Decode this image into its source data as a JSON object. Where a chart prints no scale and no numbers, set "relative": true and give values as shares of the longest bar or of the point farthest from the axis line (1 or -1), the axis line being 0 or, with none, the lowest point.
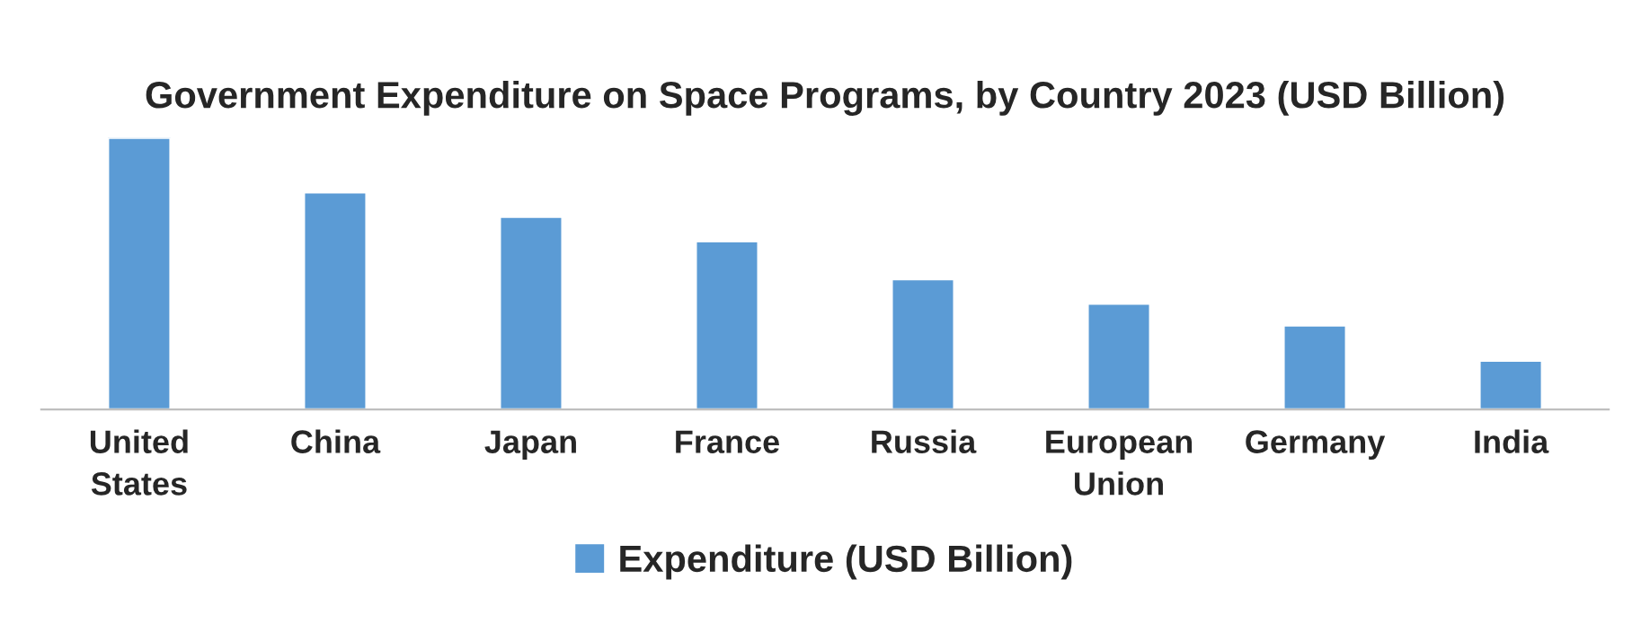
{
  "chart_data": {
    "type": "bar",
    "title": "Government Expenditure on Space Programs, by Country 2023 (USD Billion)",
    "categories": [
      "United States",
      "China",
      "Japan",
      "France",
      "Russia",
      "European Union",
      "Germany",
      "India"
    ],
    "relative": true,
    "series": [
      {
        "name": "Expenditure (USD Billion)",
        "color": "#5b9bd5",
        "values": [
          1,
          0.8,
          0.71,
          0.62,
          0.48,
          0.39,
          0.31,
          0.18
        ]
      }
    ],
    "grid": false,
    "legend": "bottom"
  }
}
